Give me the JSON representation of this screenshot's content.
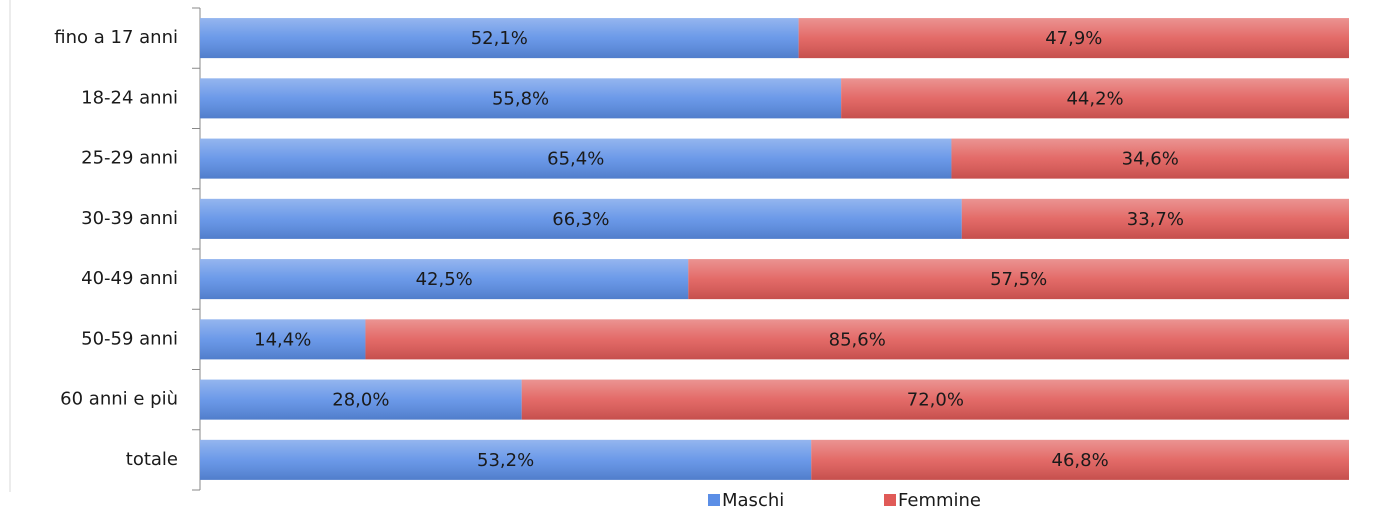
{
  "chart_data": {
    "type": "stacked-bar-horizontal",
    "categories": [
      "fino a 17 anni",
      "18-24 anni",
      "25-29 anni",
      "30-39 anni",
      "40-49 anni",
      "50-59 anni",
      "60 anni e più",
      "totale"
    ],
    "xlim": [
      0,
      100
    ],
    "series": [
      {
        "name": "Maschi",
        "color": "#5b8ee6",
        "values": [
          52.1,
          55.8,
          65.4,
          66.3,
          42.5,
          14.4,
          28.0,
          53.2
        ],
        "value_labels": [
          "52,1%",
          "55,8%",
          "65,4%",
          "66,3%",
          "42,5%",
          "14,4%",
          "28,0%",
          "53,2%"
        ]
      },
      {
        "name": "Femmine",
        "color": "#e05a57",
        "values": [
          47.9,
          44.2,
          34.6,
          33.7,
          57.5,
          85.6,
          72.0,
          46.8
        ],
        "value_labels": [
          "47,9%",
          "44,2%",
          "34,6%",
          "33,7%",
          "57,5%",
          "85,6%",
          "72,0%",
          "46,8%"
        ]
      }
    ],
    "legend": "bottom"
  }
}
